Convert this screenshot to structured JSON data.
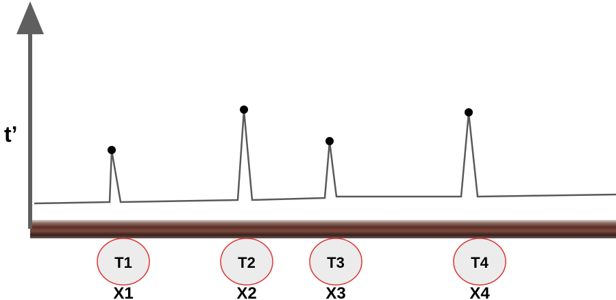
{
  "y_axis": {
    "label": "t’"
  },
  "colors": {
    "axis": "#5f5f5f",
    "trace": "#595959",
    "marker": "#000000",
    "rod_dark": "#3a1f1a",
    "rod_mid": "#7a4a3f",
    "rod_light": "#c9b5ad",
    "circle_fill": "#ececec",
    "circle_stroke": "#dd3333"
  },
  "nodes": [
    {
      "tag": "T1",
      "pos": "X1"
    },
    {
      "tag": "T2",
      "pos": "X2"
    },
    {
      "tag": "T3",
      "pos": "X3"
    },
    {
      "tag": "T4",
      "pos": "X4"
    }
  ]
}
